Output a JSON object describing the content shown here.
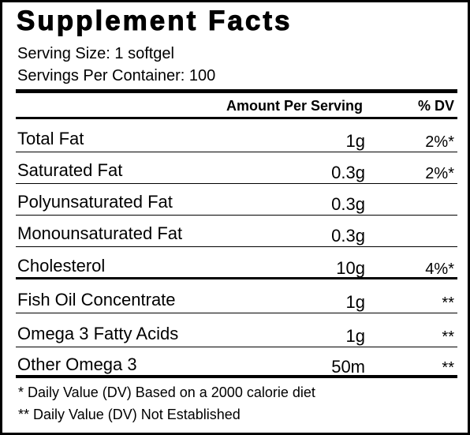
{
  "header": {
    "title": "Supplement Facts",
    "serving_size": "Serving Size: 1 softgel",
    "servings_per_container": "Servings Per Container: 100"
  },
  "table": {
    "columns": {
      "amount": "Amount Per Serving",
      "dv": "% DV"
    },
    "rows": [
      {
        "name": "Total Fat",
        "amount": "1g",
        "dv": "2%*"
      },
      {
        "name": "Saturated Fat",
        "amount": "0.3g",
        "dv": "2%*"
      },
      {
        "name": "Polyunsaturated Fat",
        "amount": "0.3g"
      },
      {
        "name": "Monounsaturated Fat",
        "amount": "0.3g"
      },
      {
        "name": "Cholesterol",
        "amount": "10g",
        "dv": "4%*"
      },
      {
        "name": "Fish Oil Concentrate",
        "amount": "1g",
        "dv": "**"
      },
      {
        "name": "Omega 3 Fatty Acids",
        "amount": "1g",
        "dv": "**"
      },
      {
        "name": "Other Omega 3",
        "amount": "50m",
        "dv": "**"
      }
    ]
  },
  "footnotes": [
    "* Daily Value (DV) Based on a 2000 calorie diet",
    "** Daily Value (DV) Not Established"
  ]
}
